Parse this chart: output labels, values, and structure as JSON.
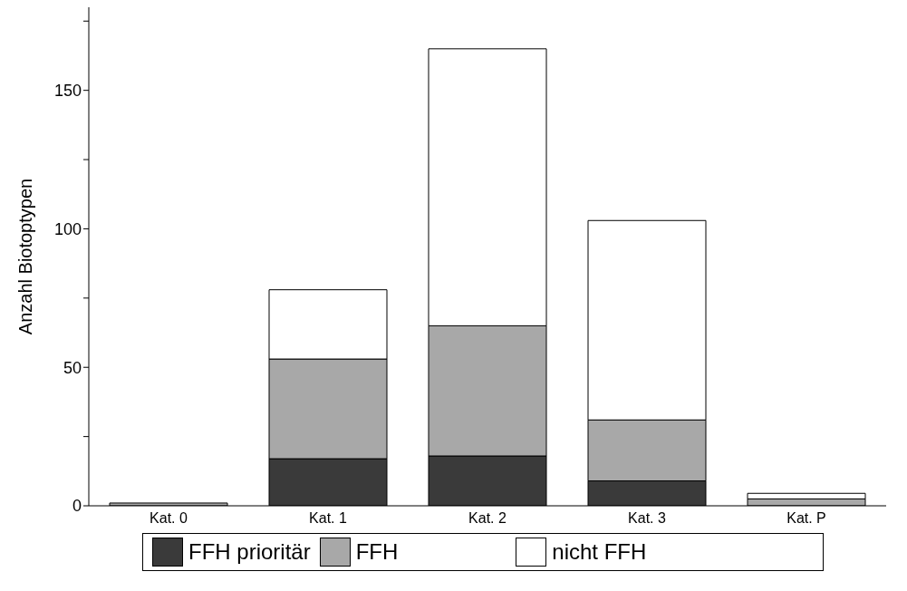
{
  "chart_data": {
    "type": "bar",
    "ylabel": "Anzahl Biotoptypen",
    "categories": [
      "Kat. 0",
      "Kat. 1",
      "Kat. 2",
      "Kat. 3",
      "Kat. P"
    ],
    "stacked": true,
    "series": [
      {
        "name": "FFH prioritär",
        "color": "#3a3a3a",
        "values": [
          0,
          17,
          18,
          9,
          0
        ]
      },
      {
        "name": "FFH",
        "color": "#a8a8a8",
        "values": [
          1,
          36,
          47,
          22,
          2.5
        ]
      },
      {
        "name": "nicht FFH",
        "color": "#ffffff",
        "values": [
          0,
          25,
          100,
          72,
          2
        ]
      }
    ],
    "ylim": [
      0,
      180
    ],
    "yticks": [
      0,
      {
        "value": 25,
        "label": null
      },
      50,
      {
        "value": 75,
        "label": null
      },
      100,
      {
        "value": 125,
        "label": null
      },
      150,
      {
        "value": 175,
        "label": null
      }
    ],
    "legend": "bottom"
  }
}
